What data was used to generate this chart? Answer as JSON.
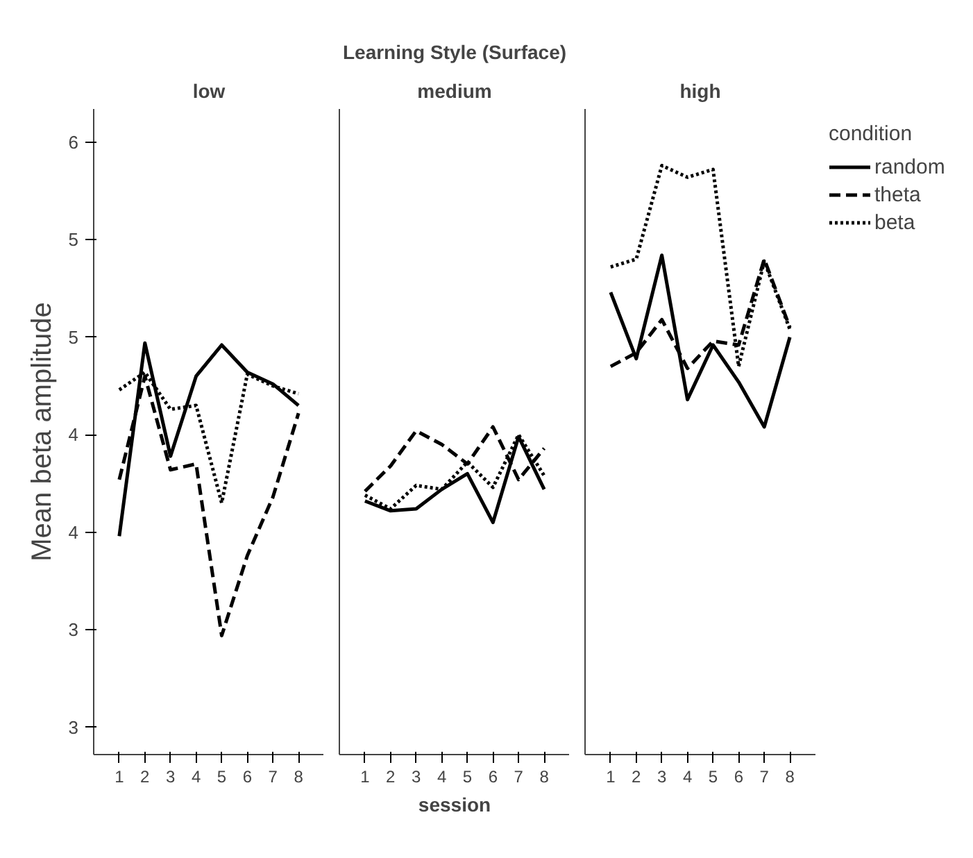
{
  "chart_data": [
    {
      "type": "line",
      "subtitle": "low",
      "ylabel": "Mean beta amplitude",
      "x": [
        1,
        2,
        3,
        4,
        5,
        6,
        7,
        8
      ],
      "xlim": [
        0,
        9
      ],
      "xticks": [
        1,
        2,
        3,
        4,
        5,
        6,
        7,
        8
      ],
      "ylim": [
        2.86,
        6.17
      ],
      "yticks": [
        {
          "value": 3,
          "label": "3"
        },
        {
          "value": 3.5,
          "label": "3"
        },
        {
          "value": 4,
          "label": "4"
        },
        {
          "value": 4.5,
          "label": "4"
        },
        {
          "value": 5,
          "label": "5"
        },
        {
          "value": 5.5,
          "label": "5"
        },
        {
          "value": 6,
          "label": "6"
        }
      ],
      "grid": false,
      "series": [
        {
          "color": "#000000",
          "line_style": "solid",
          "values": [
            3.98,
            4.97,
            4.39,
            4.8,
            4.96,
            4.82,
            4.76,
            4.65
          ]
        },
        {
          "color": "#000000",
          "line_style": "dashed",
          "values": [
            4.27,
            4.8,
            4.32,
            4.35,
            3.47,
            3.88,
            4.18,
            4.61
          ]
        },
        {
          "color": "#000000",
          "line_style": "dotted",
          "values": [
            4.73,
            4.82,
            4.63,
            4.65,
            4.15,
            4.81,
            4.75,
            4.71
          ]
        }
      ]
    },
    {
      "type": "line",
      "title": "Learning Style (Surface)",
      "subtitle": "medium",
      "xlabel": "session",
      "x": [
        1,
        2,
        3,
        4,
        5,
        6,
        7,
        8
      ],
      "xlim": [
        0,
        9
      ],
      "xticks": [
        1,
        2,
        3,
        4,
        5,
        6,
        7,
        8
      ],
      "ylim": [
        2.86,
        6.17
      ],
      "tick_labels": "x",
      "grid": false,
      "series": [
        {
          "color": "#000000",
          "line_style": "solid",
          "values": [
            4.16,
            4.11,
            4.12,
            4.22,
            4.3,
            4.05,
            4.49,
            4.22
          ]
        },
        {
          "color": "#000000",
          "line_style": "dashed",
          "values": [
            4.21,
            4.34,
            4.52,
            4.45,
            4.35,
            4.54,
            4.27,
            4.43
          ]
        },
        {
          "color": "#000000",
          "line_style": "dotted",
          "values": [
            4.19,
            4.12,
            4.24,
            4.22,
            4.36,
            4.23,
            4.5,
            4.29
          ]
        }
      ]
    },
    {
      "type": "line",
      "subtitle": "high",
      "legend_title": "condition",
      "x": [
        1,
        2,
        3,
        4,
        5,
        6,
        7,
        8
      ],
      "xlim": [
        0,
        9
      ],
      "xticks": [
        1,
        2,
        3,
        4,
        5,
        6,
        7,
        8
      ],
      "ylim": [
        2.86,
        6.17
      ],
      "tick_labels": "x",
      "grid": false,
      "legend": "right",
      "series": [
        {
          "name": "random",
          "color": "#000000",
          "line_style": "solid",
          "values": [
            5.23,
            4.89,
            5.42,
            4.68,
            4.96,
            4.77,
            4.54,
            5.0
          ]
        },
        {
          "name": "theta",
          "color": "#000000",
          "line_style": "dashed",
          "values": [
            4.85,
            4.92,
            5.09,
            4.84,
            4.98,
            4.96,
            5.4,
            5.05
          ]
        },
        {
          "name": "beta",
          "color": "#000000",
          "line_style": "dotted",
          "values": [
            5.36,
            5.4,
            5.88,
            5.82,
            5.86,
            4.85,
            5.39,
            5.04
          ]
        }
      ]
    }
  ]
}
